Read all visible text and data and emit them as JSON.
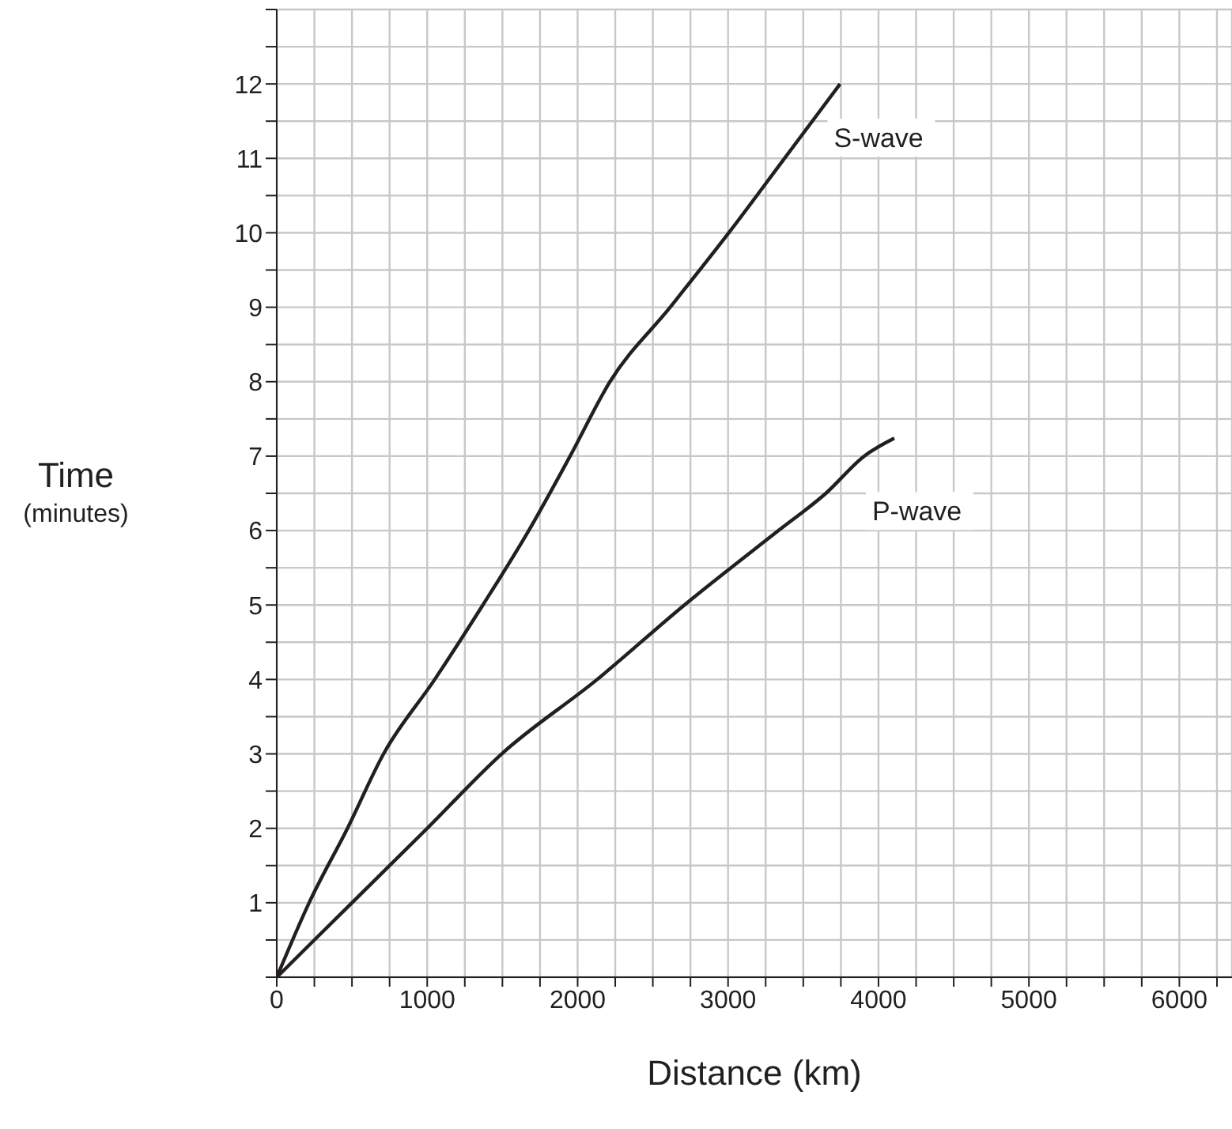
{
  "chart_data": {
    "type": "line",
    "xlabel": "Distance (km)",
    "ylabel": "Time (minutes)",
    "series": [
      {
        "name": "S-wave",
        "color": "#231f20",
        "x": [
          0,
          215,
          470,
          710,
          1050,
          1370,
          1675,
          1950,
          2215,
          2615,
          3005,
          3375,
          3745
        ],
        "values": [
          0,
          1,
          2,
          3,
          4,
          5,
          6,
          7,
          8,
          9,
          10,
          11,
          12
        ]
      },
      {
        "name": "P-wave",
        "color": "#231f20",
        "x": [
          0,
          500,
          1000,
          1495,
          2130,
          2710,
          3335,
          3650,
          3905,
          4105
        ],
        "values": [
          0,
          1,
          2,
          3,
          4,
          5,
          6,
          6.5,
          7,
          7.24
        ]
      }
    ],
    "xlim": [
      0,
      6350
    ],
    "ylim": [
      0,
      13
    ],
    "xticks": [
      0,
      {
        "value": 250,
        "label": null
      },
      {
        "value": 500,
        "label": null
      },
      {
        "value": 750,
        "label": null
      },
      1000,
      {
        "value": 1250,
        "label": null
      },
      {
        "value": 1500,
        "label": null
      },
      {
        "value": 1750,
        "label": null
      },
      2000,
      {
        "value": 2250,
        "label": null
      },
      {
        "value": 2500,
        "label": null
      },
      {
        "value": 2750,
        "label": null
      },
      3000,
      {
        "value": 3250,
        "label": null
      },
      {
        "value": 3500,
        "label": null
      },
      {
        "value": 3750,
        "label": null
      },
      4000,
      {
        "value": 4250,
        "label": null
      },
      {
        "value": 4500,
        "label": null
      },
      {
        "value": 4750,
        "label": null
      },
      5000,
      {
        "value": 5250,
        "label": null
      },
      {
        "value": 5500,
        "label": null
      },
      {
        "value": 5750,
        "label": null
      },
      6000,
      {
        "value": 6250,
        "label": null
      }
    ],
    "yticks": [
      {
        "value": 0,
        "label": null
      },
      {
        "value": 0.5,
        "label": null
      },
      1,
      {
        "value": 1.5,
        "label": null
      },
      2,
      {
        "value": 2.5,
        "label": null
      },
      3,
      {
        "value": 3.5,
        "label": null
      },
      4,
      {
        "value": 4.5,
        "label": null
      },
      5,
      {
        "value": 5.5,
        "label": null
      },
      6,
      {
        "value": 6.5,
        "label": null
      },
      7,
      {
        "value": 7.5,
        "label": null
      },
      8,
      {
        "value": 8.5,
        "label": null
      },
      9,
      {
        "value": 9.5,
        "label": null
      },
      10,
      {
        "value": 10.5,
        "label": null
      },
      11,
      {
        "value": 11.5,
        "label": null
      },
      12,
      {
        "value": 12.5,
        "label": null
      },
      {
        "value": 13,
        "label": null
      }
    ],
    "grid": true,
    "legend": false,
    "marker": "none",
    "line_style": "solid"
  }
}
